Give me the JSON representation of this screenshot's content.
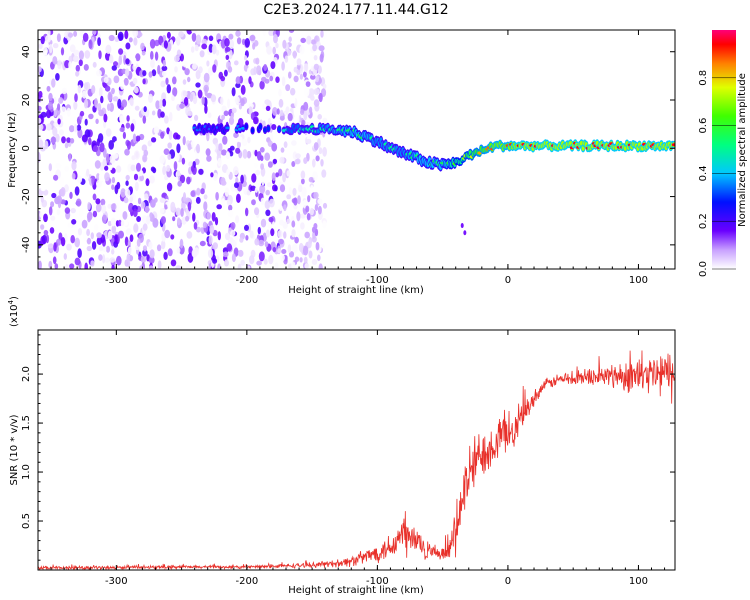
{
  "title": "C2E3.2024.177.11.44.G12",
  "colorbar": {
    "label": "Normalized spectral amplitude",
    "ticks": [
      "0.0",
      "0.2",
      "0.4",
      "0.6",
      "0.8"
    ],
    "tick_values": [
      0.0,
      0.2,
      0.4,
      0.6,
      0.8
    ],
    "range": [
      0,
      1
    ],
    "colormap": [
      "#ffffff",
      "#7000ff",
      "#0000ff",
      "#00e0ff",
      "#00ff40",
      "#d0ff00",
      "#ff8000",
      "#ff0000",
      "#ff0080"
    ]
  },
  "chart_data": [
    {
      "type": "heatmap",
      "xlabel": "Height of straight line (km)",
      "ylabel": "Frequency (Hz)",
      "xlim": [
        -360,
        128
      ],
      "ylim": [
        -50,
        49
      ],
      "xticks": [
        -300,
        -200,
        -100,
        0,
        100
      ],
      "xtick_labels": [
        "-300",
        "-200",
        "-100",
        "0",
        "100"
      ],
      "yticks": [
        -40,
        -20,
        0,
        20,
        40
      ],
      "ytick_labels": [
        "-40",
        "-20",
        "0",
        "20",
        "40"
      ],
      "noise_region_x": [
        -360,
        -140
      ],
      "signal_trace": {
        "x": [
          -240,
          -215,
          -170,
          -140,
          -120,
          -110,
          -100,
          -90,
          -80,
          -70,
          -60,
          -50,
          -40,
          -30,
          -20,
          -10,
          0,
          10,
          40,
          80,
          128
        ],
        "y": [
          8,
          8,
          8,
          8,
          7,
          5,
          3,
          0,
          -2,
          -4,
          -6,
          -7,
          -6,
          -3,
          -1,
          1,
          1,
          1,
          1,
          1,
          1
        ],
        "peak_amplitude": [
          0.3,
          0.3,
          0.4,
          0.45,
          0.5,
          0.5,
          0.45,
          0.45,
          0.45,
          0.5,
          0.5,
          0.5,
          0.6,
          0.7,
          0.8,
          0.85,
          0.85,
          0.9,
          0.9,
          0.9,
          0.9
        ]
      }
    },
    {
      "type": "line",
      "xlabel": "Height of straight line (km)",
      "ylabel": "SNR (10 * v/v)",
      "y_multiplier_label": "(x10",
      "y_multiplier_exp": "4",
      "y_multiplier_close": ")",
      "xlim": [
        -360,
        128
      ],
      "ylim": [
        0,
        24500
      ],
      "xticks": [
        -300,
        -200,
        -100,
        0,
        100
      ],
      "xtick_labels": [
        "-300",
        "-200",
        "-100",
        "0",
        "100"
      ],
      "yticks": [
        5000,
        10000,
        15000,
        20000
      ],
      "ytick_labels": [
        "0.5",
        "1.0",
        "1.5",
        "2.0"
      ],
      "series": [
        {
          "color": "#e8302a",
          "x": [
            -360,
            -300,
            -250,
            -200,
            -150,
            -130,
            -120,
            -110,
            -100,
            -95,
            -90,
            -85,
            -80,
            -75,
            -70,
            -65,
            -60,
            -55,
            -50,
            -45,
            -40,
            -35,
            -30,
            -25,
            -20,
            -15,
            -10,
            -5,
            0,
            5,
            10,
            15,
            20,
            25,
            30,
            40,
            50,
            60,
            70,
            80,
            90,
            100,
            110,
            120,
            128
          ],
          "y": [
            200,
            250,
            300,
            300,
            500,
            700,
            900,
            1300,
            1800,
            2100,
            2500,
            3000,
            3500,
            3200,
            2900,
            2500,
            1900,
            1500,
            1500,
            2000,
            3500,
            7500,
            9500,
            11000,
            12000,
            12500,
            13000,
            13500,
            14500,
            14000,
            15500,
            16500,
            17500,
            18500,
            19000,
            19500,
            19500,
            19700,
            19800,
            19800,
            19900,
            19800,
            19900,
            20000,
            19800
          ],
          "noise_amp": [
            200,
            200,
            200,
            200,
            300,
            500,
            700,
            900,
            1200,
            1500,
            1800,
            2200,
            2800,
            2600,
            2200,
            1800,
            1200,
            800,
            800,
            1500,
            2500,
            3500,
            4000,
            3500,
            3000,
            3000,
            3000,
            3000,
            2500,
            2500,
            2000,
            1500,
            1000,
            800,
            700,
            800,
            900,
            1100,
            1300,
            1600,
            2000,
            2400,
            2800,
            3200,
            3500
          ]
        }
      ]
    }
  ]
}
